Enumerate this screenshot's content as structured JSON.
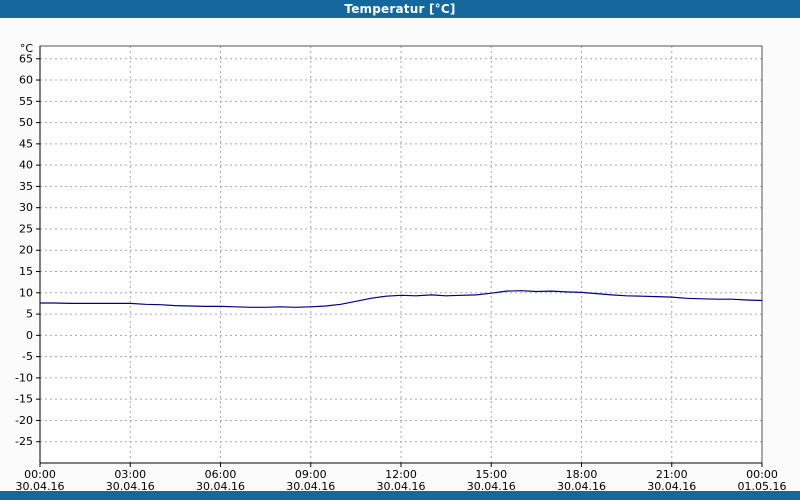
{
  "window": {
    "title": "Temperatur [°C]",
    "titlebar_color": "#15689E",
    "footer_color": "#15689E"
  },
  "chart_data": {
    "type": "line",
    "title": "Temperatur [°C]",
    "xlabel": "",
    "ylabel": "°C",
    "ylim": [
      -30,
      68
    ],
    "xlim_hours": [
      0,
      24
    ],
    "grid": "dashed",
    "legend_position": "none",
    "yticks": [
      65,
      60,
      55,
      50,
      45,
      40,
      35,
      30,
      25,
      20,
      15,
      10,
      5,
      0,
      -5,
      -10,
      -15,
      -20,
      -25
    ],
    "xticks": [
      {
        "hour": 0,
        "time": "00:00",
        "date": "30.04.16"
      },
      {
        "hour": 3,
        "time": "03:00",
        "date": "30.04.16"
      },
      {
        "hour": 6,
        "time": "06:00",
        "date": "30.04.16"
      },
      {
        "hour": 9,
        "time": "09:00",
        "date": "30.04.16"
      },
      {
        "hour": 12,
        "time": "12:00",
        "date": "30.04.16"
      },
      {
        "hour": 15,
        "time": "15:00",
        "date": "30.04.16"
      },
      {
        "hour": 18,
        "time": "18:00",
        "date": "30.04.16"
      },
      {
        "hour": 21,
        "time": "21:00",
        "date": "30.04.16"
      },
      {
        "hour": 24,
        "time": "00:00",
        "date": "01.05.16"
      }
    ],
    "series": [
      {
        "name": "Temperatur",
        "color": "#000080",
        "points": [
          [
            0,
            7.6
          ],
          [
            0.5,
            7.6
          ],
          [
            1,
            7.5
          ],
          [
            1.5,
            7.5
          ],
          [
            2,
            7.5
          ],
          [
            2.5,
            7.5
          ],
          [
            3,
            7.5
          ],
          [
            3.5,
            7.3
          ],
          [
            4,
            7.2
          ],
          [
            4.5,
            7.0
          ],
          [
            5,
            6.9
          ],
          [
            5.5,
            6.8
          ],
          [
            6,
            6.8
          ],
          [
            6.5,
            6.7
          ],
          [
            7,
            6.6
          ],
          [
            7.5,
            6.6
          ],
          [
            8,
            6.7
          ],
          [
            8.5,
            6.6
          ],
          [
            9,
            6.7
          ],
          [
            9.5,
            6.9
          ],
          [
            10,
            7.3
          ],
          [
            10.5,
            8.0
          ],
          [
            11,
            8.7
          ],
          [
            11.5,
            9.2
          ],
          [
            12,
            9.4
          ],
          [
            12.5,
            9.3
          ],
          [
            13,
            9.5
          ],
          [
            13.5,
            9.3
          ],
          [
            14,
            9.4
          ],
          [
            14.5,
            9.5
          ],
          [
            15,
            9.9
          ],
          [
            15.5,
            10.4
          ],
          [
            16,
            10.5
          ],
          [
            16.5,
            10.3
          ],
          [
            17,
            10.4
          ],
          [
            17.5,
            10.2
          ],
          [
            18,
            10.1
          ],
          [
            18.5,
            9.8
          ],
          [
            19,
            9.5
          ],
          [
            19.5,
            9.3
          ],
          [
            20,
            9.2
          ],
          [
            20.5,
            9.1
          ],
          [
            21,
            9.0
          ],
          [
            21.5,
            8.7
          ],
          [
            22,
            8.6
          ],
          [
            22.5,
            8.5
          ],
          [
            23,
            8.5
          ],
          [
            23.5,
            8.3
          ],
          [
            24,
            8.2
          ]
        ]
      }
    ]
  }
}
